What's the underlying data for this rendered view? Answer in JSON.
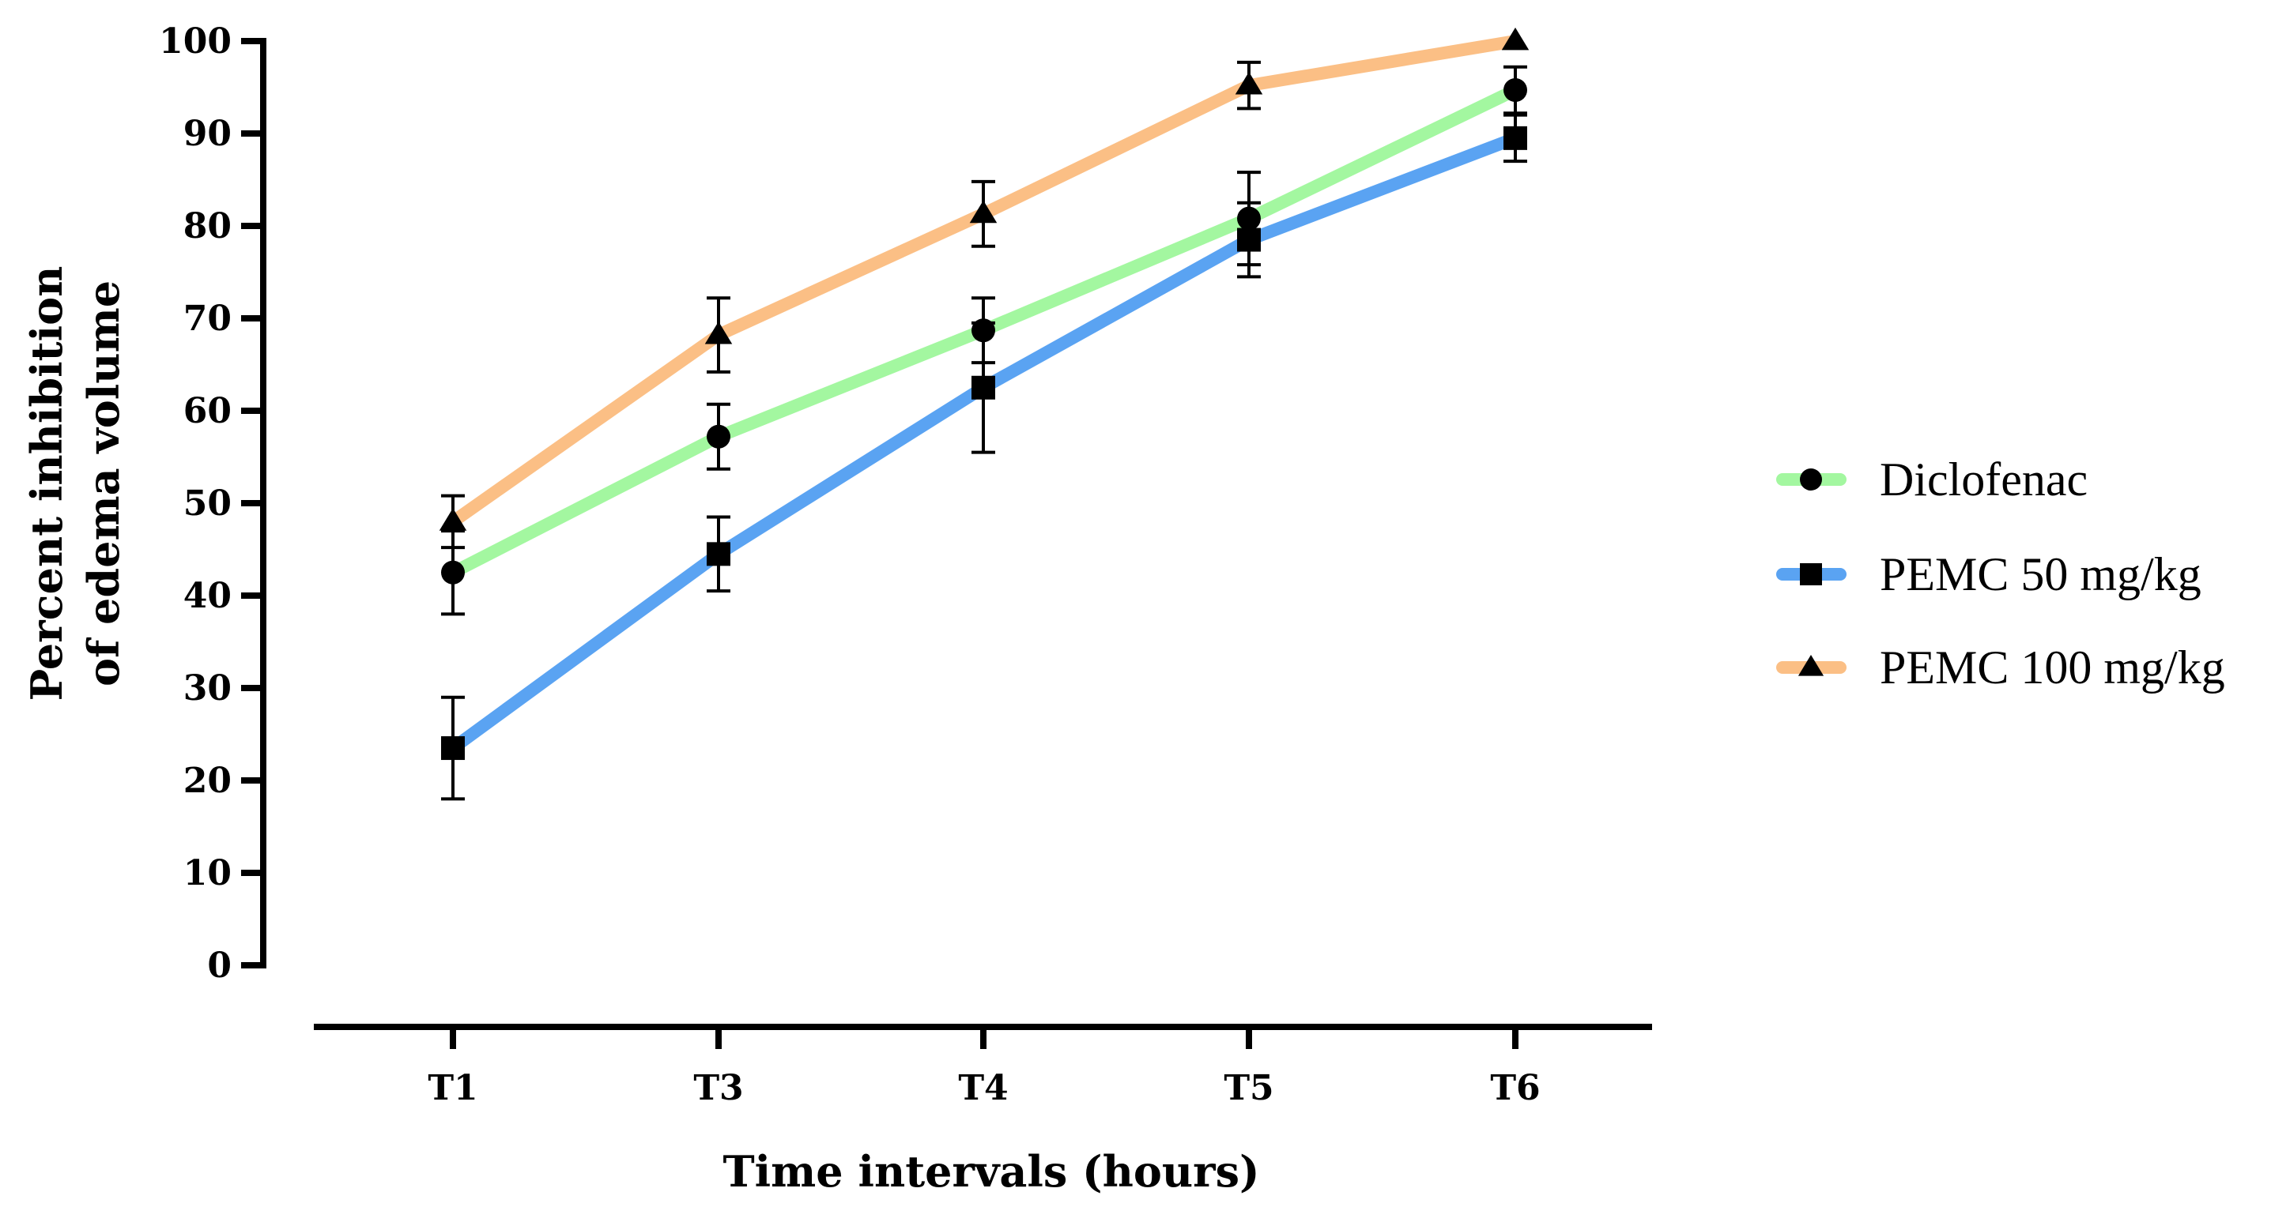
{
  "chart_data": {
    "type": "line",
    "title": "",
    "xlabel": "Time intervals (hours)",
    "ylabel": [
      "Percent inhibition",
      "of edema volume"
    ],
    "categories": [
      "T1",
      "T3",
      "T4",
      "T5",
      "T6"
    ],
    "yticks": [
      "0",
      "10",
      "20",
      "30",
      "40",
      "50",
      "60",
      "70",
      "80",
      "90",
      "100"
    ],
    "ylim": [
      0,
      100
    ],
    "grid": false,
    "legend_position": "right",
    "series": [
      {
        "name": "Diclofenac",
        "color": "#a3f7a0",
        "marker": "circle",
        "values": [
          42.5,
          57.2,
          68.7,
          80.8,
          94.7
        ],
        "errors": [
          4.5,
          3.5,
          3.5,
          5.0,
          2.5
        ]
      },
      {
        "name": "PEMC 50 mg/kg",
        "color": "#5aa3f2",
        "marker": "square",
        "values": [
          23.5,
          44.5,
          62.5,
          78.5,
          89.5
        ],
        "errors": [
          5.5,
          4.0,
          7.0,
          4.0,
          2.5
        ]
      },
      {
        "name": "PEMC 100 mg/kg",
        "color": "#fbbf85",
        "marker": "triangle",
        "values": [
          48.0,
          68.2,
          81.3,
          95.2,
          100.0
        ],
        "errors": [
          2.8,
          4.0,
          3.5,
          2.5,
          0
        ]
      }
    ]
  }
}
